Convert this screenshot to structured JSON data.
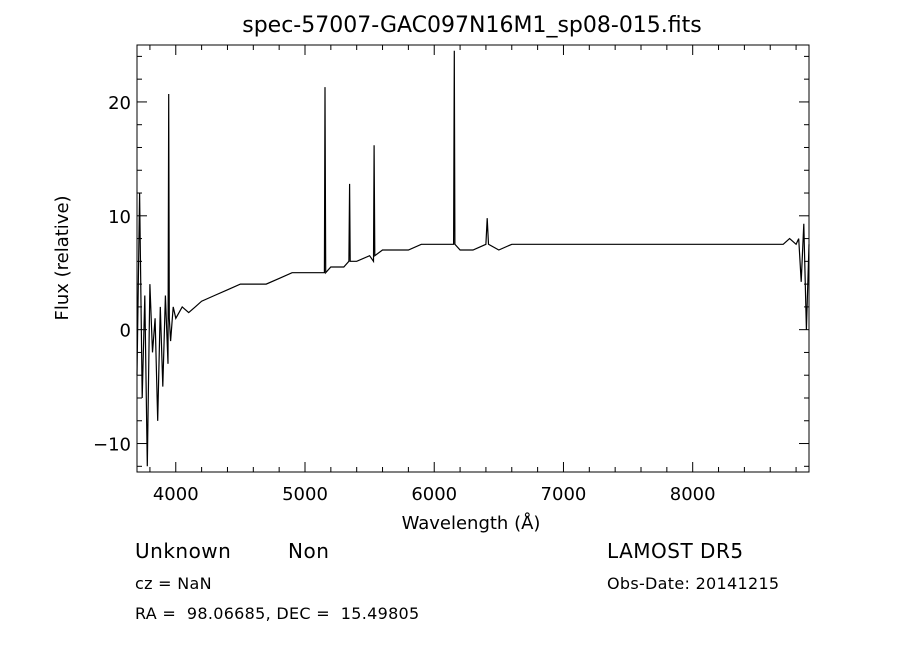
{
  "chart_data": {
    "type": "line",
    "title": "spec-57007-GAC097N16M1_sp08-015.fits",
    "xlabel": "Wavelength (Å)",
    "ylabel": "Flux (relative)",
    "xlim": [
      3700,
      8900
    ],
    "ylim": [
      -12.5,
      25
    ],
    "xticks": [
      4000,
      5000,
      6000,
      7000,
      8000
    ],
    "yticks": [
      -10,
      0,
      10,
      20
    ],
    "grid": false,
    "series": [
      {
        "color": "#000000",
        "x": [
          3700,
          3720,
          3740,
          3760,
          3780,
          3800,
          3820,
          3840,
          3860,
          3880,
          3900,
          3920,
          3940,
          3945,
          3950,
          3960,
          3980,
          4000,
          4050,
          4100,
          4150,
          4200,
          4300,
          4400,
          4500,
          4600,
          4700,
          4800,
          4900,
          5000,
          5100,
          5150,
          5155,
          5160,
          5200,
          5300,
          5340,
          5345,
          5350,
          5400,
          5500,
          5530,
          5535,
          5540,
          5600,
          5700,
          5800,
          5900,
          6000,
          6100,
          6150,
          6155,
          6160,
          6200,
          6300,
          6400,
          6410,
          6420,
          6500,
          6600,
          6800,
          7000,
          7200,
          7400,
          7600,
          7800,
          8000,
          8200,
          8400,
          8600,
          8700,
          8750,
          8800,
          8820,
          8840,
          8860,
          8880,
          8900
        ],
        "y": [
          -4,
          12,
          -6,
          3,
          -12,
          4,
          -2,
          1,
          -8,
          2,
          -5,
          3,
          -3,
          20.7,
          1,
          -1,
          2,
          1,
          2,
          1.5,
          2,
          2.5,
          3,
          3.5,
          4,
          4,
          4,
          4.5,
          5,
          5,
          5,
          5,
          21.3,
          5,
          5.5,
          5.5,
          6,
          12.8,
          6,
          6,
          6.5,
          6,
          16.2,
          6.5,
          7,
          7,
          7,
          7.5,
          7.5,
          7.5,
          7.5,
          24.5,
          7.5,
          7,
          7,
          7.5,
          9.8,
          7.5,
          7,
          7.5,
          7.5,
          7.5,
          7.5,
          7.5,
          7.5,
          7.5,
          7.5,
          7.5,
          7.5,
          7.5,
          7.5,
          8,
          7.5,
          8,
          4.2,
          9.3,
          0,
          7.5
        ]
      }
    ]
  },
  "footer": {
    "object_class": "Unknown",
    "object_subclass": "Non",
    "cz_line": "cz = NaN",
    "coords_line": "RA =  98.06685, DEC =  15.49805",
    "survey": "LAMOST DR5",
    "obs_date": "Obs-Date: 20141215"
  }
}
